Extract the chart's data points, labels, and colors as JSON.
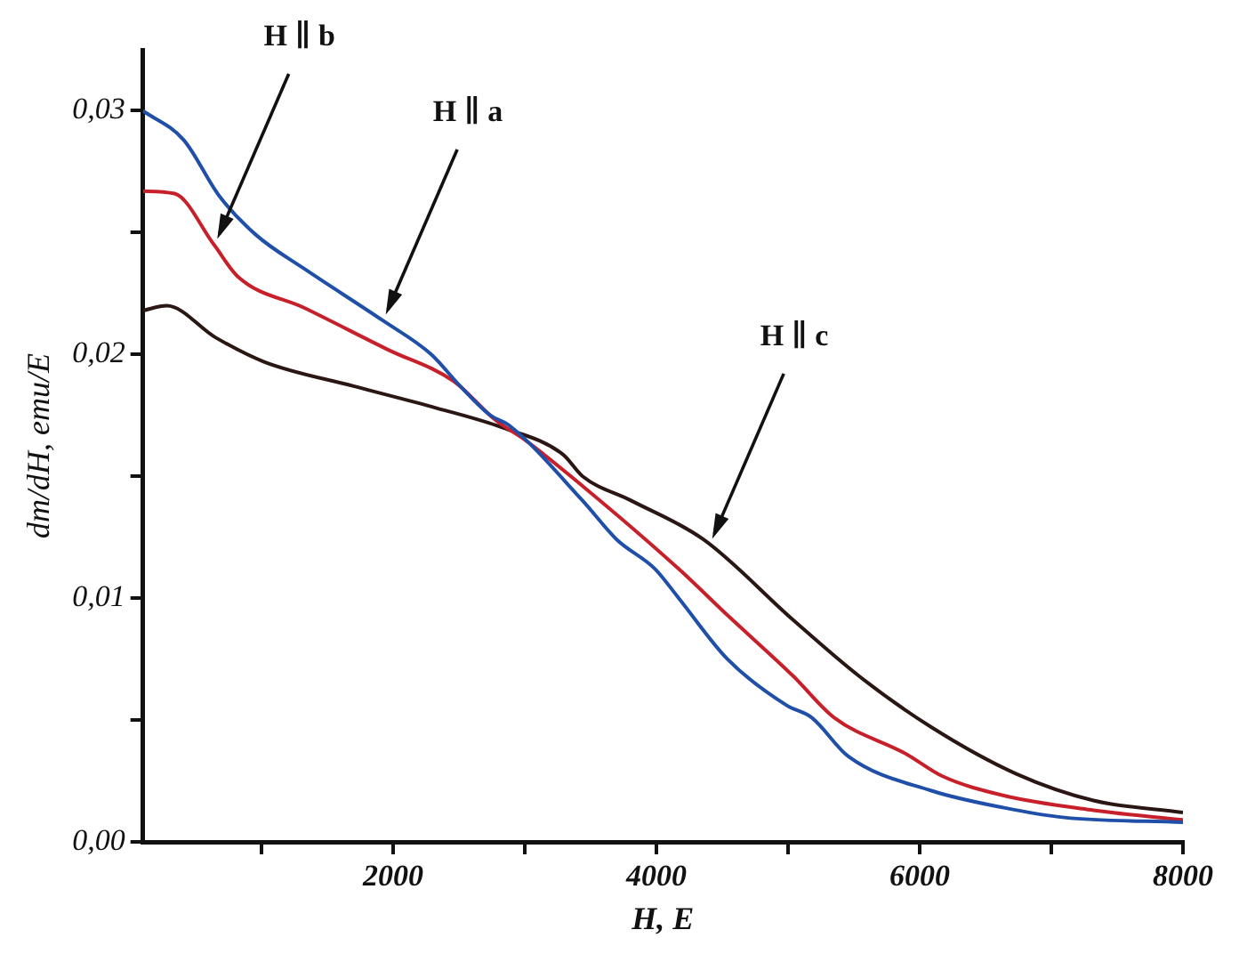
{
  "chart_data": {
    "type": "line",
    "xlabel": "H, E",
    "ylabel": "dm/dH, emu/E",
    "xlim": [
      100,
      8000
    ],
    "ylim": [
      0,
      0.0325
    ],
    "xticks": [
      {
        "value": 1000,
        "label": null
      },
      {
        "value": 2000,
        "label": "2000"
      },
      {
        "value": 3000,
        "label": null
      },
      {
        "value": 4000,
        "label": "4000"
      },
      {
        "value": 5000,
        "label": null
      },
      {
        "value": 6000,
        "label": "6000"
      },
      {
        "value": 7000,
        "label": null
      },
      {
        "value": 8000,
        "label": "8000"
      }
    ],
    "yticks": [
      {
        "value": 0,
        "label": "0,00"
      },
      {
        "value": 0.005,
        "label": null
      },
      {
        "value": 0.01,
        "label": "0,01"
      },
      {
        "value": 0.015,
        "label": null
      },
      {
        "value": 0.02,
        "label": "0,02"
      },
      {
        "value": 0.025,
        "label": null
      },
      {
        "value": 0.03,
        "label": "0,03"
      }
    ],
    "grid": false,
    "legend": false,
    "marker": "none",
    "line_style": "solid",
    "series": [
      {
        "color": "#1f4fa8",
        "x": [
          100,
          410,
          680,
          960,
          1330,
          1920,
          2290,
          2510,
          2740,
          2880,
          3440,
          3700,
          3990,
          4170,
          4540,
          4990,
          5180,
          5460,
          6090,
          6640,
          7100,
          8000
        ],
        "values": [
          0.03,
          0.0288,
          0.0265,
          0.0249,
          0.0235,
          0.0214,
          0.02,
          0.0187,
          0.0175,
          0.0171,
          0.014,
          0.0124,
          0.0112,
          0.01,
          0.0075,
          0.0056,
          0.0051,
          0.0035,
          0.0021,
          0.0014,
          0.001,
          0.0008
        ]
      },
      {
        "color": "#c8202a",
        "x": [
          100,
          340,
          640,
          820,
          1330,
          1960,
          2460,
          2780,
          3000,
          3440,
          4170,
          4540,
          5040,
          5350,
          5900,
          6170,
          6640,
          7320,
          8000
        ],
        "values": [
          0.0267,
          0.0266,
          0.0245,
          0.0232,
          0.0219,
          0.0202,
          0.0189,
          0.0173,
          0.0165,
          0.0146,
          0.0112,
          0.0093,
          0.0068,
          0.0051,
          0.0036,
          0.0027,
          0.0019,
          0.0013,
          0.0009
        ]
      },
      {
        "color": "#2a1612",
        "x": [
          100,
          280,
          650,
          1020,
          1700,
          2330,
          2830,
          3290,
          3440,
          3810,
          4360,
          5040,
          5540,
          6090,
          6730,
          7320,
          8000
        ],
        "values": [
          0.0218,
          0.022,
          0.0207,
          0.0197,
          0.0187,
          0.0178,
          0.017,
          0.0159,
          0.015,
          0.014,
          0.0124,
          0.0091,
          0.0068,
          0.0047,
          0.0028,
          0.0017,
          0.0012
        ]
      }
    ],
    "annotations": [
      {
        "text": "H ∥ b",
        "x": 640,
        "y": 0.0245
      },
      {
        "text": "H ∥ a",
        "x": 1920,
        "y": 0.0214
      },
      {
        "text": "H ∥ c",
        "x": 4400,
        "y": 0.0122
      }
    ]
  }
}
